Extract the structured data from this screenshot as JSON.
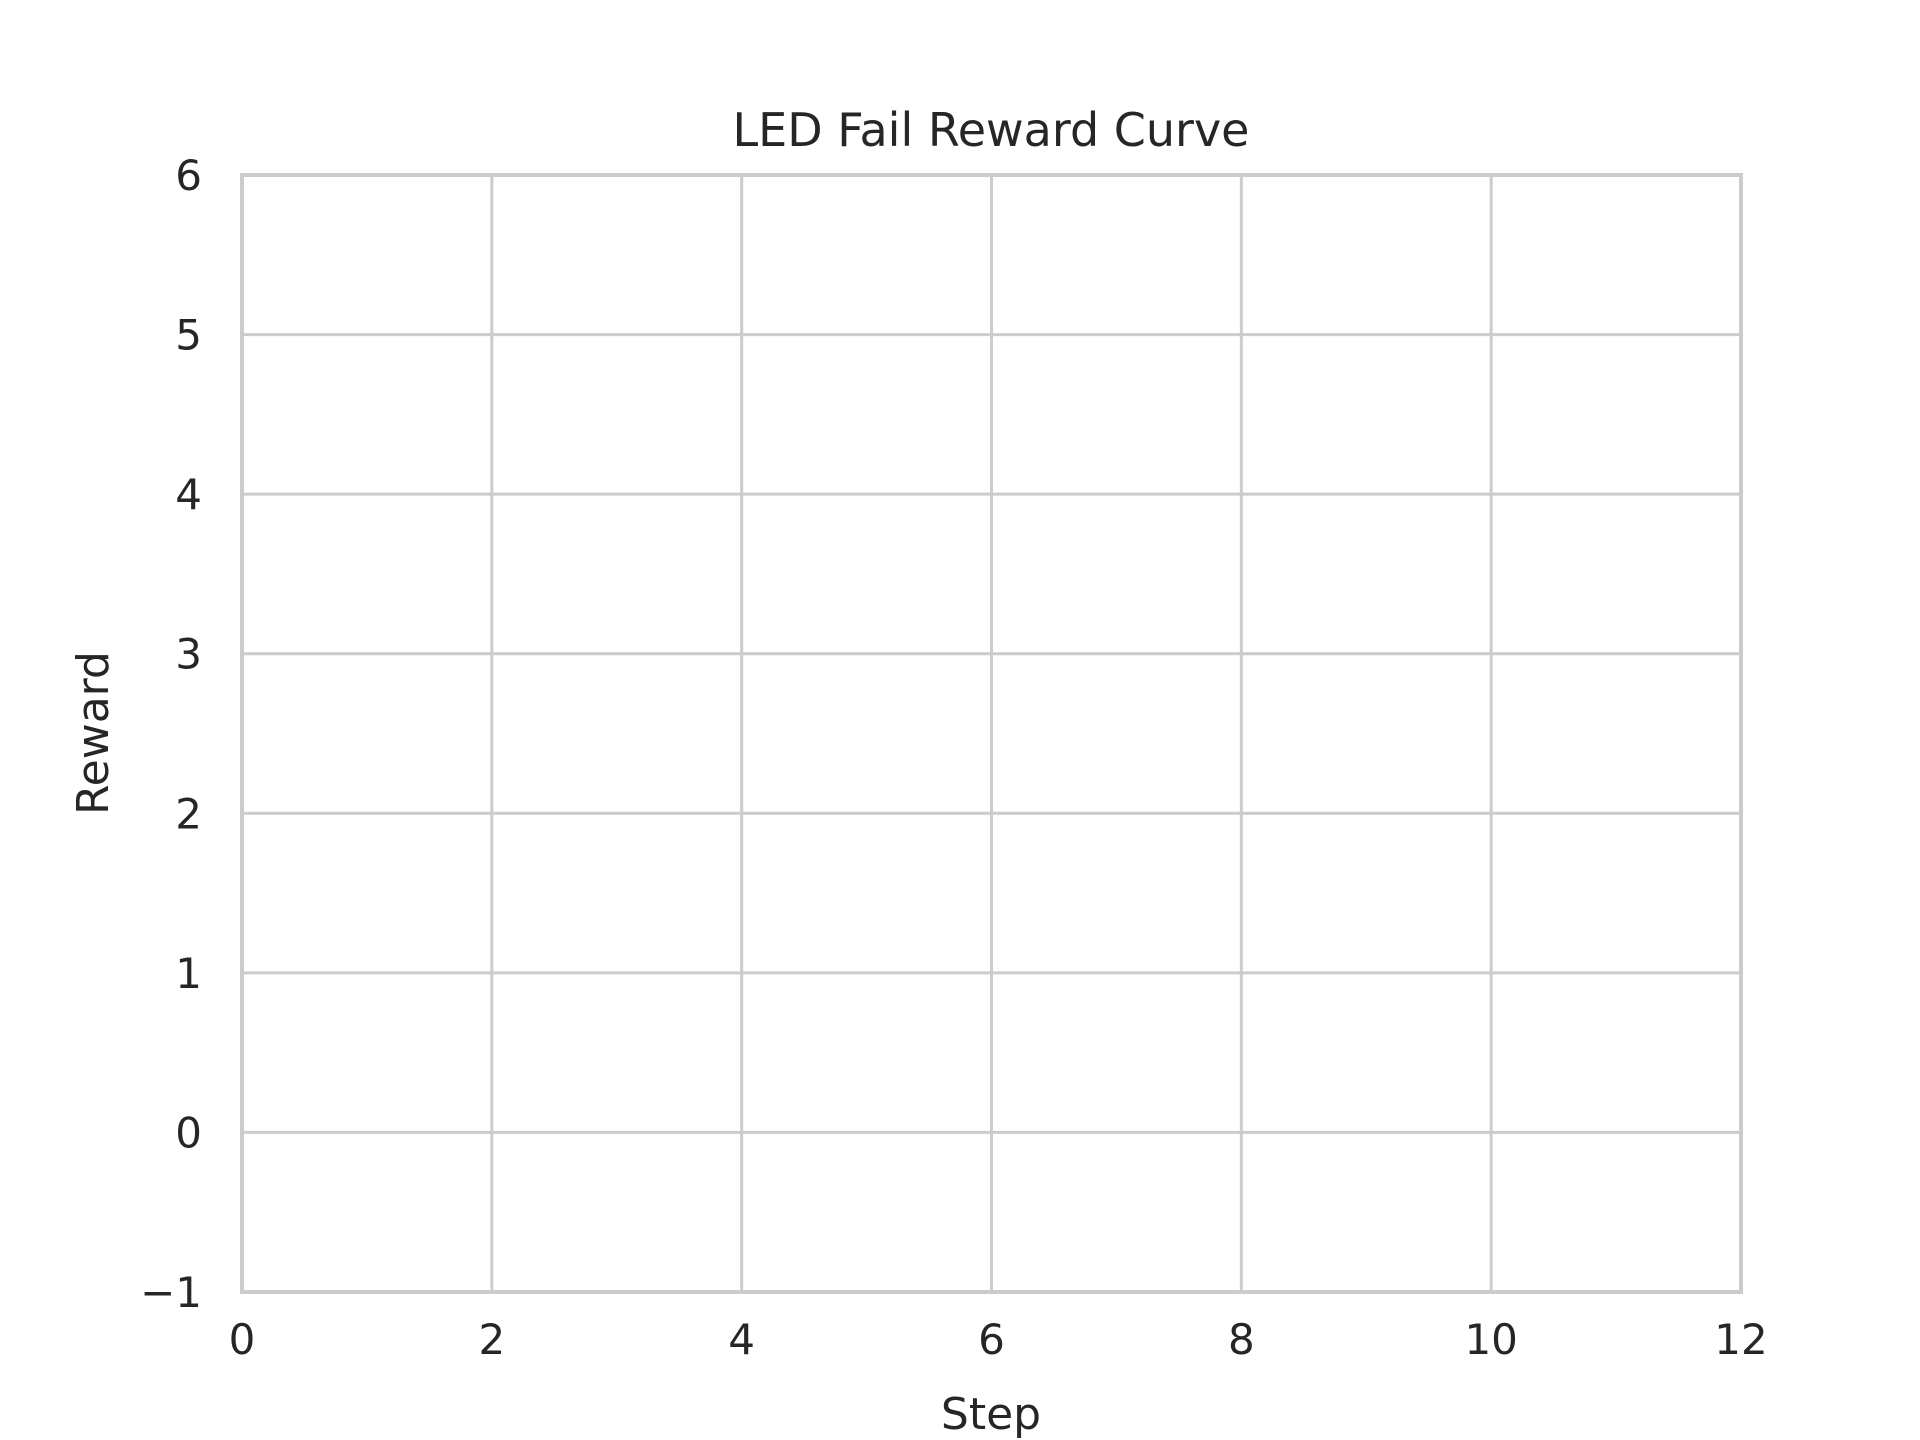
{
  "chart_data": {
    "type": "line",
    "title": "LED Fail Reward Curve",
    "xlabel": "Step",
    "ylabel": "Reward",
    "xlim": [
      0,
      12
    ],
    "ylim": [
      -1,
      6
    ],
    "x_ticks": [
      0,
      2,
      4,
      6,
      8,
      10,
      12
    ],
    "x_tick_labels": [
      "0",
      "2",
      "4",
      "6",
      "8",
      "10",
      "12"
    ],
    "y_ticks": [
      -1,
      0,
      1,
      2,
      3,
      4,
      5,
      6
    ],
    "y_tick_labels": [
      "−1",
      "0",
      "1",
      "2",
      "3",
      "4",
      "5",
      "6"
    ],
    "grid": true,
    "series": [],
    "colors": {
      "grid": "#cccccc",
      "text": "#262626",
      "background": "#ffffff"
    }
  }
}
